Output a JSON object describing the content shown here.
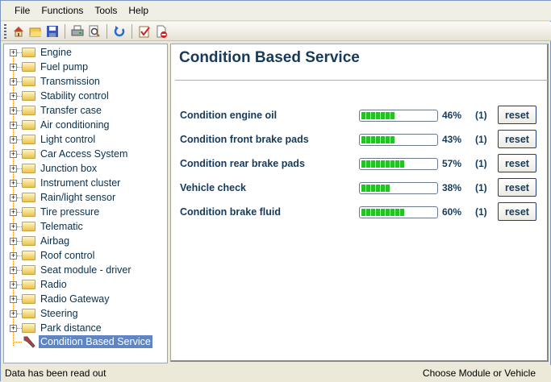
{
  "menu": [
    {
      "label": "File"
    },
    {
      "label": "Functions"
    },
    {
      "label": "Tools"
    },
    {
      "label": "Help"
    }
  ],
  "toolbar": [
    "home-icon",
    "open-folder-icon",
    "save-icon",
    "print-icon",
    "print-preview-icon",
    "refresh-icon",
    "checklist-icon",
    "delete-document-icon"
  ],
  "tree": {
    "items": [
      {
        "label": "Engine"
      },
      {
        "label": "Fuel pump"
      },
      {
        "label": "Transmission"
      },
      {
        "label": "Stability control"
      },
      {
        "label": "Transfer case"
      },
      {
        "label": "Air conditioning"
      },
      {
        "label": "Light control"
      },
      {
        "label": "Car Access System"
      },
      {
        "label": "Junction box"
      },
      {
        "label": "Instrument cluster"
      },
      {
        "label": "Rain/light sensor"
      },
      {
        "label": "Tire pressure"
      },
      {
        "label": "Telematic"
      },
      {
        "label": "Airbag"
      },
      {
        "label": "Roof control"
      },
      {
        "label": "Seat module - driver"
      },
      {
        "label": "Radio"
      },
      {
        "label": "Radio Gateway"
      },
      {
        "label": "Steering"
      },
      {
        "label": "Park distance"
      }
    ],
    "selected": {
      "label": "Condition Based Service",
      "icon": "wrench-icon"
    }
  },
  "main": {
    "title": "Condition Based Service",
    "rows": [
      {
        "label": "Condition engine oil",
        "percent": 46,
        "percent_text": "46%",
        "count": "(1)",
        "button": "reset"
      },
      {
        "label": "Condition front brake pads",
        "percent": 43,
        "percent_text": "43%",
        "count": "(1)",
        "button": "reset"
      },
      {
        "label": "Condition rear brake pads",
        "percent": 57,
        "percent_text": "57%",
        "count": "(1)",
        "button": "reset"
      },
      {
        "label": "Vehicle check",
        "percent": 38,
        "percent_text": "38%",
        "count": "(1)",
        "button": "reset"
      },
      {
        "label": "Condition brake fluid",
        "percent": 60,
        "percent_text": "60%",
        "count": "(1)",
        "button": "reset"
      }
    ]
  },
  "status": {
    "left": "Data has been read out",
    "right": "Choose Module or Vehicle"
  },
  "colors": {
    "accent": "#f0a830",
    "progress": "#22c322",
    "selection": "#5f86c2",
    "text": "#163a5a"
  }
}
